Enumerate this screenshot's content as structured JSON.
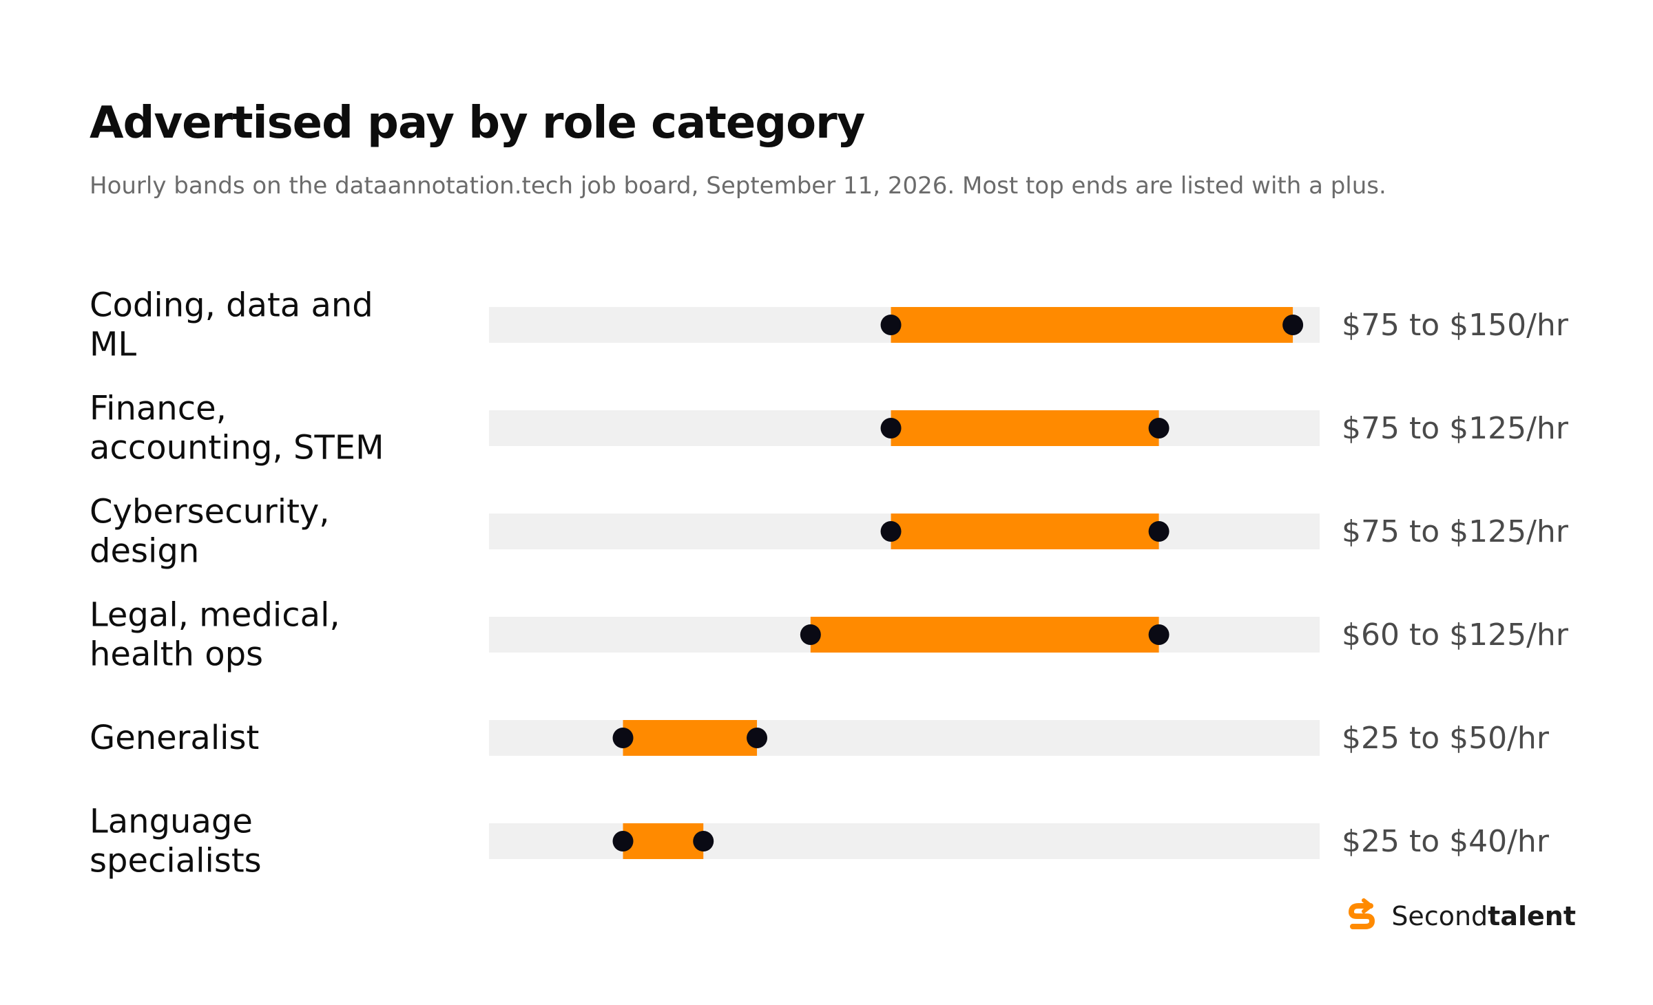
{
  "header": {
    "title": "Advertised pay by role category",
    "subtitle": "Hourly bands on the dataannotation.tech job board, September 11, 2026. Most top ends are listed with a plus."
  },
  "brand": {
    "name_light": "Second",
    "name_bold": "talent",
    "logo_icon": "secondtalent-s-logo-icon",
    "logo_color": "#ff8a00"
  },
  "colors": {
    "range_bar": "#ff8a00",
    "track": "#f0f0f0",
    "endpoint": "#0a0a14"
  },
  "chart_data": {
    "type": "range-bar",
    "xlim": [
      0,
      155
    ],
    "unit": "$/hr",
    "grid": false,
    "legend": "none",
    "rows": [
      {
        "label": [
          "Coding, data and",
          "ML"
        ],
        "low": 75,
        "high": 150,
        "value_label": "$75 to $150/hr"
      },
      {
        "label": [
          "Finance,",
          "accounting, STEM"
        ],
        "low": 75,
        "high": 125,
        "value_label": "$75 to $125/hr"
      },
      {
        "label": [
          "Cybersecurity,",
          "design"
        ],
        "low": 75,
        "high": 125,
        "value_label": "$75 to $125/hr"
      },
      {
        "label": [
          "Legal, medical,",
          "health ops"
        ],
        "low": 60,
        "high": 125,
        "value_label": "$60 to $125/hr"
      },
      {
        "label": [
          "Generalist"
        ],
        "low": 25,
        "high": 50,
        "value_label": "$25 to $50/hr"
      },
      {
        "label": [
          "Language",
          "specialists"
        ],
        "low": 25,
        "high": 40,
        "value_label": "$25 to $40/hr"
      }
    ]
  }
}
